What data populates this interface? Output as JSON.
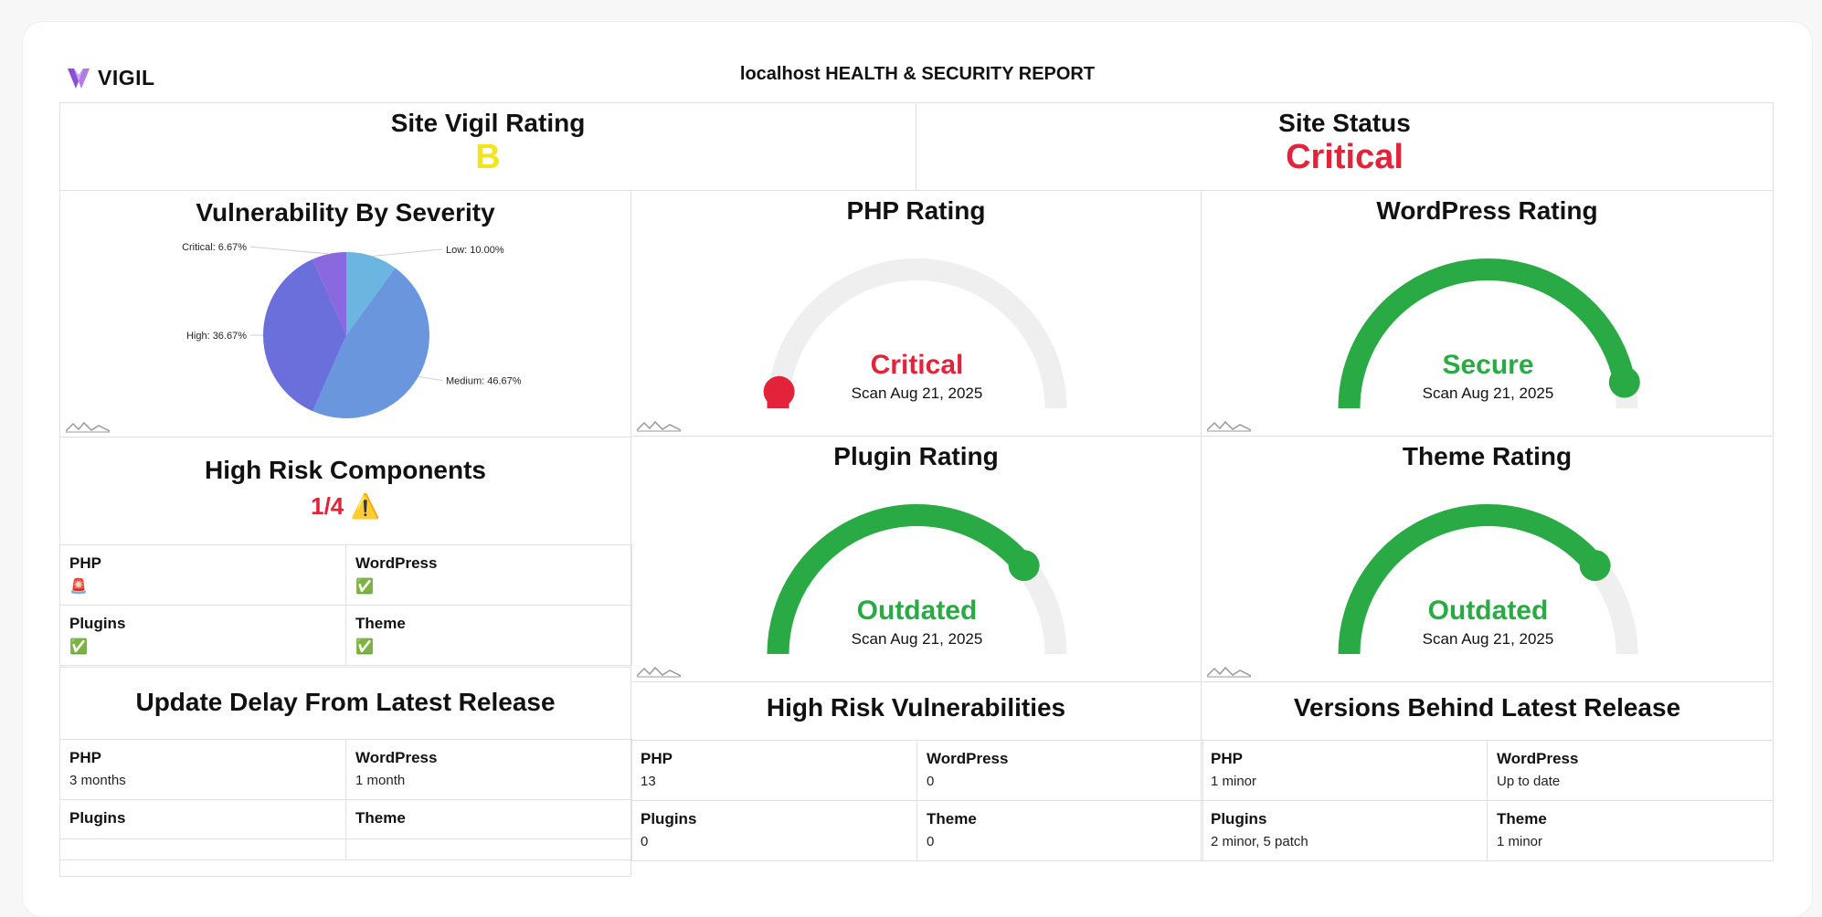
{
  "header": {
    "brand": "VIGIL",
    "report_title": "localhost HEALTH & SECURITY REPORT"
  },
  "summary": {
    "vigil_rating_label": "Site Vigil Rating",
    "vigil_rating_value": "B",
    "site_status_label": "Site Status",
    "site_status_value": "Critical"
  },
  "colors": {
    "rating_b": "#f2e51b",
    "critical": "#e3233a",
    "secure": "#2aaa45",
    "gauge_track": "#efefef",
    "pie_low": "#6bb6e0",
    "pie_medium": "#6a96dd",
    "pie_high": "#6a6fdc",
    "pie_critical": "#8a68df"
  },
  "severity_chart": {
    "title": "Vulnerability By Severity",
    "chart_data": {
      "type": "pie",
      "slices": [
        {
          "label": "Low",
          "value": 10.0,
          "display": "Low: 10.00%"
        },
        {
          "label": "Medium",
          "value": 46.67,
          "display": "Medium: 46.67%"
        },
        {
          "label": "High",
          "value": 36.67,
          "display": "High: 36.67%"
        },
        {
          "label": "Critical",
          "value": 6.67,
          "display": "Critical: 6.67%"
        }
      ]
    }
  },
  "gauges": [
    {
      "title": "PHP Rating",
      "status": "Critical",
      "scan": "Scan Aug 21, 2025",
      "level": 0.0,
      "color": "#e3233a"
    },
    {
      "title": "WordPress Rating",
      "status": "Secure",
      "scan": "Scan Aug 21, 2025",
      "level": 0.94,
      "color": "#2aaa45"
    },
    {
      "title": "Plugin Rating",
      "status": "Outdated",
      "scan": "Scan Aug 21, 2025",
      "level": 0.78,
      "color": "#2aaa45"
    },
    {
      "title": "Theme Rating",
      "status": "Outdated",
      "scan": "Scan Aug 21, 2025",
      "level": 0.78,
      "color": "#2aaa45"
    }
  ],
  "high_risk_components": {
    "title": "High Risk Components",
    "count": "1/4",
    "warning_icon": "⚠️",
    "items": [
      {
        "label": "PHP",
        "icon": "🚨"
      },
      {
        "label": "WordPress",
        "icon": "✅"
      },
      {
        "label": "Plugins",
        "icon": "✅"
      },
      {
        "label": "Theme",
        "icon": "✅"
      }
    ]
  },
  "update_delay": {
    "title": "Update Delay From Latest Release",
    "items": [
      {
        "label": "PHP",
        "value": "3 months"
      },
      {
        "label": "WordPress",
        "value": "1 month"
      },
      {
        "label": "Plugins",
        "value": ""
      },
      {
        "label": "Theme",
        "value": ""
      }
    ]
  },
  "high_risk_vulns": {
    "title": "High Risk Vulnerabilities",
    "items": [
      {
        "label": "PHP",
        "value": "13"
      },
      {
        "label": "WordPress",
        "value": "0"
      },
      {
        "label": "Plugins",
        "value": "0"
      },
      {
        "label": "Theme",
        "value": "0"
      }
    ]
  },
  "versions_behind": {
    "title": "Versions Behind Latest Release",
    "items": [
      {
        "label": "PHP",
        "value": "1 minor"
      },
      {
        "label": "WordPress",
        "value": "Up to date"
      },
      {
        "label": "Plugins",
        "value": "2 minor, 5 patch"
      },
      {
        "label": "Theme",
        "value": "1 minor"
      }
    ]
  }
}
